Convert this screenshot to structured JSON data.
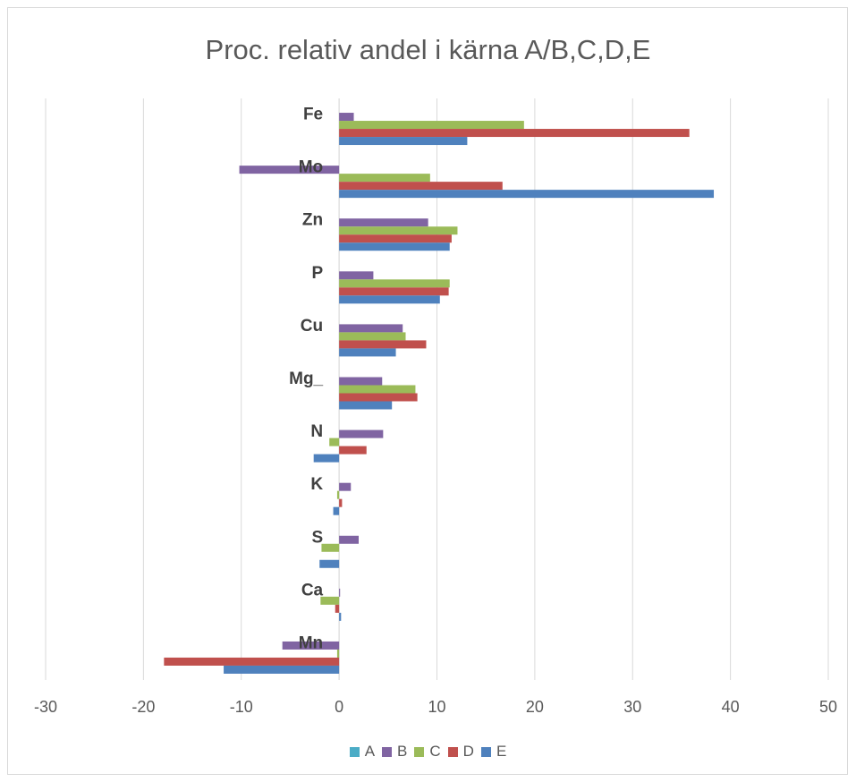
{
  "chart_data": {
    "type": "bar",
    "orientation": "horizontal",
    "title": "Proc. relativ andel i kärna A/B,C,D,E",
    "xlabel": "",
    "ylabel": "",
    "xlim": [
      -30,
      50
    ],
    "xticks": [
      -30,
      -20,
      -10,
      0,
      10,
      20,
      30,
      40,
      50
    ],
    "grid": true,
    "legend_position": "bottom",
    "categories": [
      "Fe",
      "Mo",
      "Zn",
      "P",
      "Cu",
      "Mg_",
      "N",
      "K",
      "S",
      "Ca",
      "Mn"
    ],
    "series": [
      {
        "name": "A",
        "color": "#4bacc6",
        "values": [
          0,
          0,
          0,
          0,
          0,
          0,
          0,
          0,
          0,
          0,
          0
        ]
      },
      {
        "name": "B",
        "color": "#8064a2",
        "values": [
          1.5,
          -10.2,
          9.1,
          3.5,
          6.5,
          4.4,
          4.5,
          1.2,
          2.0,
          0.1,
          -5.8
        ]
      },
      {
        "name": "C",
        "color": "#9bbb59",
        "values": [
          18.9,
          9.3,
          12.1,
          11.3,
          6.8,
          7.8,
          -1.0,
          -0.2,
          -1.8,
          -1.9,
          -0.2
        ]
      },
      {
        "name": "D",
        "color": "#c0504d",
        "values": [
          35.8,
          16.7,
          11.5,
          11.2,
          8.9,
          8.0,
          2.8,
          0.3,
          0,
          -0.4,
          -17.9
        ]
      },
      {
        "name": "E",
        "color": "#4f81bd",
        "values": [
          13.1,
          38.3,
          11.3,
          10.3,
          5.8,
          5.4,
          -2.6,
          -0.6,
          -2.0,
          0.2,
          -11.8
        ]
      }
    ]
  }
}
